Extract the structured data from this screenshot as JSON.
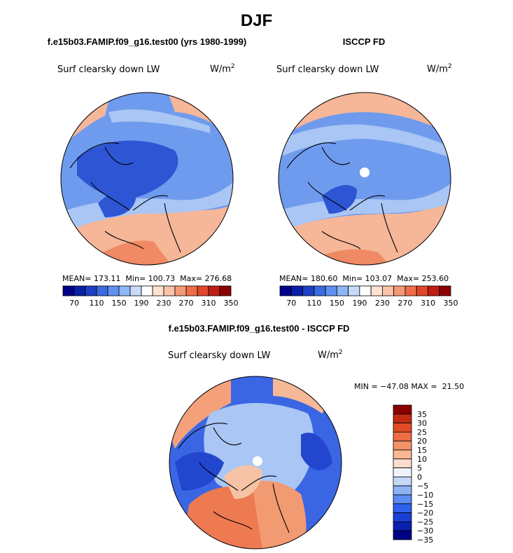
{
  "page": {
    "title": "DJF",
    "diff_title": "f.e15b03.FAMIP.f09_g16.test00 - ISCCP FD"
  },
  "colors": {
    "abs_palette": [
      "#00008b",
      "#0a1fa6",
      "#1d40c4",
      "#3b6ae0",
      "#5f90ee",
      "#8fb6f6",
      "#c7daf8",
      "#ffffff",
      "#fde2d2",
      "#fac2a6",
      "#f59a76",
      "#ee6e48",
      "#e0462a",
      "#c21e14",
      "#8b0000"
    ],
    "diff_palette": [
      "#000085",
      "#0a1fb0",
      "#1a3fd6",
      "#2f60ee",
      "#5a8cf2",
      "#8eb3f4",
      "#c5d8f7",
      "#eef3fb",
      "#fcdccb",
      "#f9b796",
      "#f49168",
      "#ee6d44",
      "#e24a26",
      "#c42a12",
      "#8b0000"
    ],
    "map": {
      "ocean_cold": "#4f7fe6",
      "ocean_mid": "#6f9bee",
      "light": "#a9c6f4",
      "dark": "#2d55d4",
      "warm_light": "#f6b698",
      "warm": "#f08a64",
      "coast": "#000000"
    }
  },
  "chart_data": [
    {
      "type": "heatmap",
      "projection": "polar-stereographic",
      "case": "f.e15b03.FAMIP.f09_g16.test00 (yrs 1980-1999)",
      "variable": "Surf clearsky down LW",
      "units": "W/m",
      "units_sup": "2",
      "stats": {
        "mean": "173.11",
        "min": "100.73",
        "max": "276.68"
      },
      "stats_labels": {
        "mean": "MEAN=",
        "min": "Min=",
        "max": "Max="
      },
      "colorbar": {
        "orientation": "horizontal",
        "tick_labels": [
          "70",
          "110",
          "150",
          "190",
          "230",
          "270",
          "310",
          "350"
        ]
      }
    },
    {
      "type": "heatmap",
      "projection": "polar-stereographic",
      "case": "ISCCP FD",
      "variable": "Surf clearsky down LW",
      "units": "W/m",
      "units_sup": "2",
      "stats": {
        "mean": "180.60",
        "min": "103.07",
        "max": "253.60"
      },
      "stats_labels": {
        "mean": "MEAN=",
        "min": "Min=",
        "max": "Max="
      },
      "colorbar": {
        "orientation": "horizontal",
        "tick_labels": [
          "70",
          "110",
          "150",
          "190",
          "230",
          "270",
          "310",
          "350"
        ]
      }
    },
    {
      "type": "heatmap",
      "projection": "polar-stereographic",
      "case": "f.e15b03.FAMIP.f09_g16.test00 - ISCCP FD",
      "variable": "Surf clearsky down LW",
      "units": "W/m",
      "units_sup": "2",
      "stats_text": "MIN = −47.08 MAX =  21.50",
      "colorbar": {
        "orientation": "vertical",
        "tick_labels": [
          "35",
          "30",
          "25",
          "20",
          "15",
          "10",
          "5",
          "0",
          "−5",
          "−10",
          "−15",
          "−20",
          "−25",
          "−30",
          "−35"
        ]
      }
    }
  ]
}
